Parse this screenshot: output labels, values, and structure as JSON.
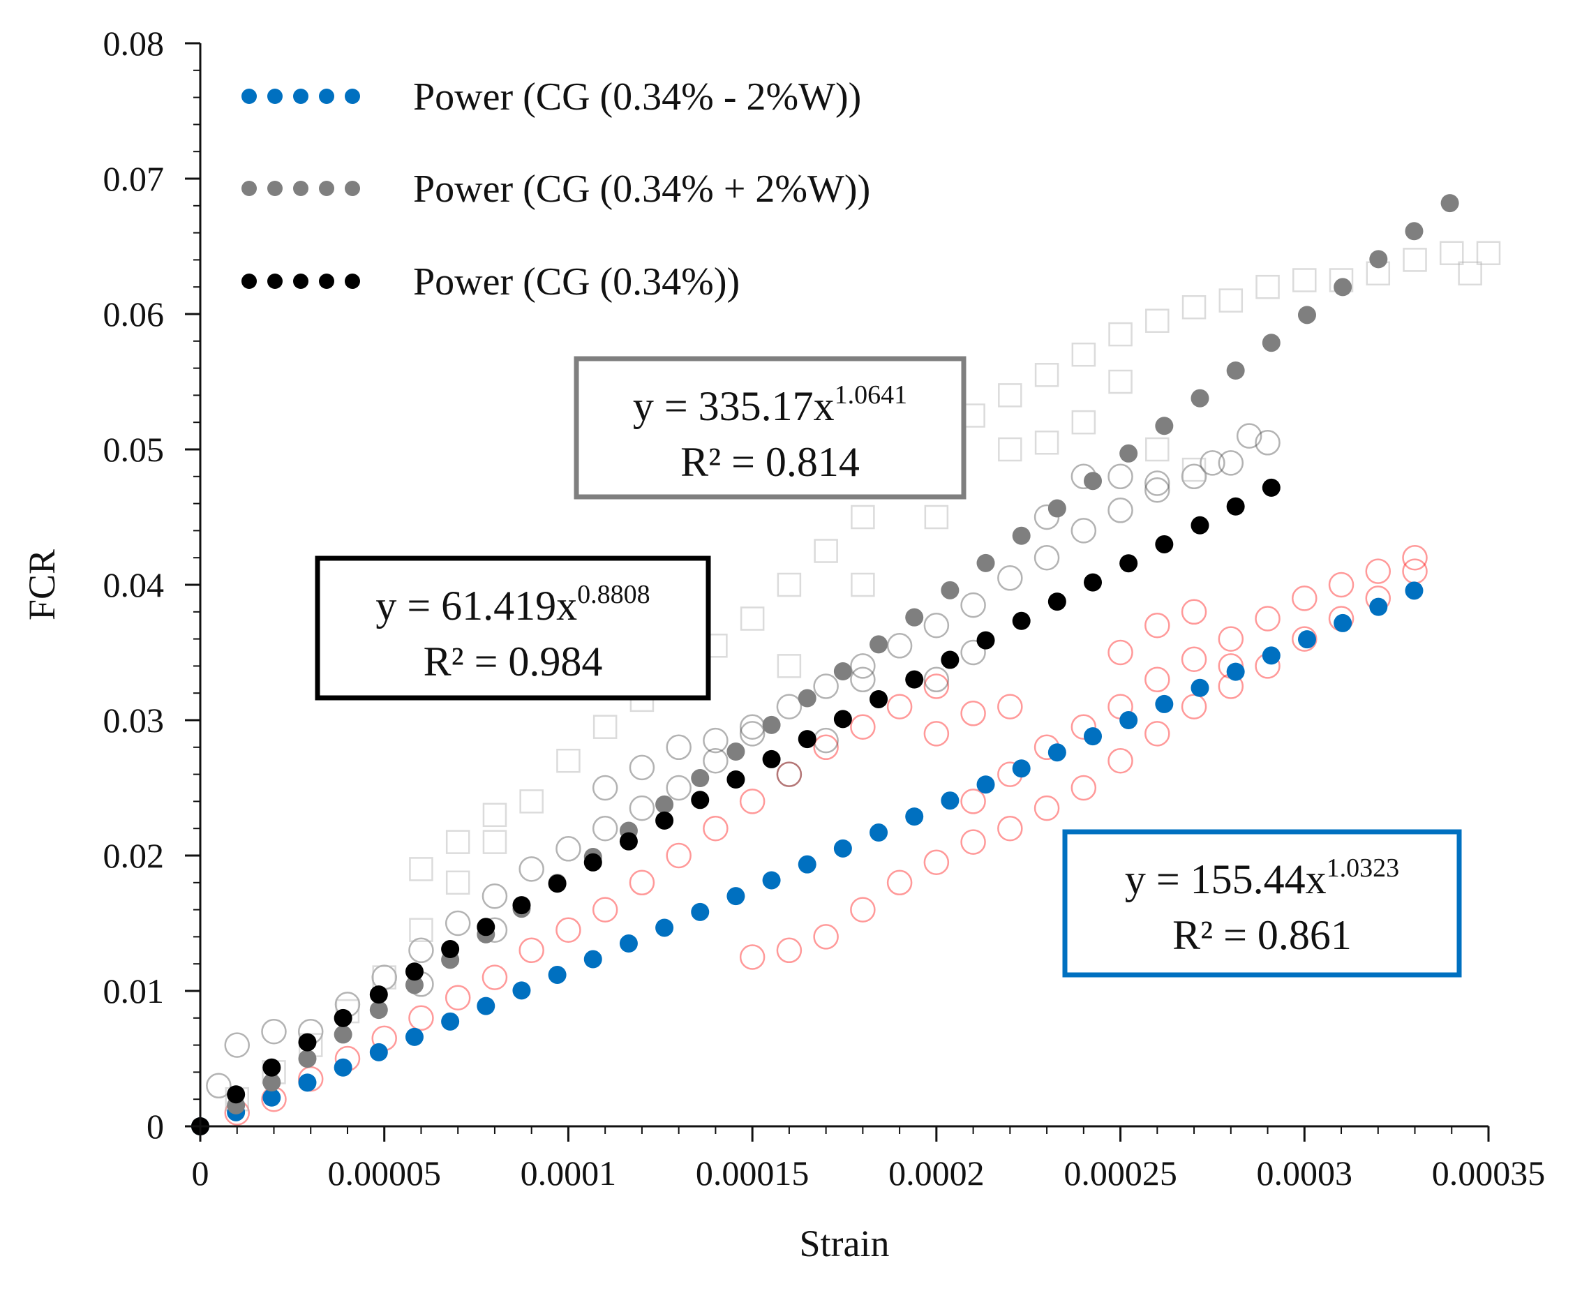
{
  "chart_data": {
    "type": "scatter",
    "xlabel": "Strain",
    "ylabel": "FCR",
    "xlim": [
      0,
      0.00035
    ],
    "ylim": [
      0,
      0.08
    ],
    "x_ticks": [
      "0",
      "0.00005",
      "0.0001",
      "0.00015",
      "0.0002",
      "0.00025",
      "0.0003",
      "0.00035"
    ],
    "y_ticks": [
      "0",
      "0.01",
      "0.02",
      "0.03",
      "0.04",
      "0.05",
      "0.06",
      "0.07",
      "0.08"
    ],
    "legend_position": "top-left",
    "series": [
      {
        "name": "Power (CG (0.34% - 2%W))",
        "kind": "trendline",
        "color": "#0070c0",
        "coef": 155.44,
        "exponent": 1.0323,
        "x_max": 0.000332
      },
      {
        "name": "Power (CG (0.34% + 2%W))",
        "kind": "trendline",
        "color": "#7f7f7f",
        "coef": 335.17,
        "exponent": 1.0641,
        "x_max": 0.000347
      },
      {
        "name": "Power (CG (0.34%))",
        "kind": "trendline",
        "color": "#000000",
        "coef": 61.419,
        "exponent": 0.8808,
        "x_max": 0.000295
      }
    ],
    "raw_series": [
      {
        "marker": "circle",
        "color": "#ff0000",
        "points": [
          [
            1e-05,
            0.001
          ],
          [
            2e-05,
            0.002
          ],
          [
            3e-05,
            0.0035
          ],
          [
            4e-05,
            0.005
          ],
          [
            5e-05,
            0.0065
          ],
          [
            6e-05,
            0.008
          ],
          [
            7e-05,
            0.0095
          ],
          [
            8e-05,
            0.011
          ],
          [
            9e-05,
            0.013
          ],
          [
            0.0001,
            0.0145
          ],
          [
            0.00011,
            0.016
          ],
          [
            0.00012,
            0.018
          ],
          [
            0.00013,
            0.02
          ],
          [
            0.00014,
            0.022
          ],
          [
            0.00015,
            0.024
          ],
          [
            0.00016,
            0.026
          ],
          [
            0.00017,
            0.028
          ],
          [
            0.00018,
            0.0295
          ],
          [
            0.00019,
            0.031
          ],
          [
            0.0002,
            0.0325
          ],
          [
            0.00015,
            0.0125
          ],
          [
            0.00016,
            0.013
          ],
          [
            0.00017,
            0.014
          ],
          [
            0.00018,
            0.016
          ],
          [
            0.00019,
            0.018
          ],
          [
            0.0002,
            0.0195
          ],
          [
            0.00021,
            0.021
          ],
          [
            0.00022,
            0.022
          ],
          [
            0.00023,
            0.0235
          ],
          [
            0.00024,
            0.025
          ],
          [
            0.00025,
            0.027
          ],
          [
            0.00026,
            0.029
          ],
          [
            0.00027,
            0.031
          ],
          [
            0.00028,
            0.0325
          ],
          [
            0.00029,
            0.034
          ],
          [
            0.0003,
            0.036
          ],
          [
            0.00031,
            0.0375
          ],
          [
            0.00032,
            0.039
          ],
          [
            0.00033,
            0.041
          ],
          [
            0.00021,
            0.024
          ],
          [
            0.00022,
            0.026
          ],
          [
            0.00023,
            0.028
          ],
          [
            0.00024,
            0.0295
          ],
          [
            0.00025,
            0.031
          ],
          [
            0.00026,
            0.033
          ],
          [
            0.00027,
            0.0345
          ],
          [
            0.00028,
            0.036
          ],
          [
            0.00029,
            0.0375
          ],
          [
            0.0003,
            0.039
          ],
          [
            0.00031,
            0.04
          ],
          [
            0.00032,
            0.041
          ],
          [
            0.00033,
            0.042
          ],
          [
            0.00022,
            0.031
          ],
          [
            0.00021,
            0.0305
          ],
          [
            0.0002,
            0.029
          ],
          [
            0.00026,
            0.037
          ],
          [
            0.00027,
            0.038
          ],
          [
            0.00025,
            0.035
          ],
          [
            0.00028,
            0.034
          ]
        ]
      },
      {
        "marker": "circle",
        "color": "#404040",
        "points": [
          [
            5e-06,
            0.003
          ],
          [
            1e-05,
            0.006
          ],
          [
            2e-05,
            0.007
          ],
          [
            3e-05,
            0.007
          ],
          [
            4e-05,
            0.009
          ],
          [
            5e-05,
            0.011
          ],
          [
            6e-05,
            0.013
          ],
          [
            7e-05,
            0.015
          ],
          [
            8e-05,
            0.017
          ],
          [
            9e-05,
            0.019
          ],
          [
            0.0001,
            0.0205
          ],
          [
            0.00011,
            0.022
          ],
          [
            0.00012,
            0.0235
          ],
          [
            0.00013,
            0.025
          ],
          [
            0.00014,
            0.027
          ],
          [
            0.00015,
            0.029
          ],
          [
            0.00016,
            0.031
          ],
          [
            0.00017,
            0.0325
          ],
          [
            0.00018,
            0.034
          ],
          [
            0.00019,
            0.0355
          ],
          [
            0.0002,
            0.037
          ],
          [
            0.00021,
            0.0385
          ],
          [
            0.00022,
            0.0405
          ],
          [
            0.00023,
            0.042
          ],
          [
            0.00024,
            0.044
          ],
          [
            0.00025,
            0.0455
          ],
          [
            0.00026,
            0.047
          ],
          [
            0.00027,
            0.048
          ],
          [
            0.00028,
            0.049
          ],
          [
            0.00029,
            0.0505
          ],
          [
            0.000285,
            0.051
          ],
          [
            0.000275,
            0.049
          ],
          [
            0.00011,
            0.025
          ],
          [
            0.00012,
            0.0265
          ],
          [
            0.00013,
            0.028
          ],
          [
            0.00014,
            0.0285
          ],
          [
            0.00015,
            0.0295
          ],
          [
            0.00016,
            0.026
          ],
          [
            0.00017,
            0.0285
          ],
          [
            0.00018,
            0.033
          ],
          [
            0.0002,
            0.033
          ],
          [
            0.00021,
            0.035
          ],
          [
            0.00023,
            0.045
          ],
          [
            0.00024,
            0.048
          ],
          [
            0.00025,
            0.048
          ],
          [
            0.00026,
            0.0475
          ],
          [
            6e-05,
            0.0105
          ],
          [
            8e-05,
            0.0145
          ]
        ]
      },
      {
        "marker": "square",
        "color": "#b0b0b0",
        "points": [
          [
            1e-05,
            0.002
          ],
          [
            2e-05,
            0.004
          ],
          [
            3e-05,
            0.006
          ],
          [
            4e-05,
            0.0085
          ],
          [
            5e-05,
            0.011
          ],
          [
            6e-05,
            0.0145
          ],
          [
            7e-05,
            0.018
          ],
          [
            8e-05,
            0.021
          ],
          [
            9e-05,
            0.024
          ],
          [
            0.0001,
            0.027
          ],
          [
            0.00011,
            0.0295
          ],
          [
            0.00012,
            0.0315
          ],
          [
            0.00013,
            0.033
          ],
          [
            0.00014,
            0.0355
          ],
          [
            0.00015,
            0.0375
          ],
          [
            0.00016,
            0.04
          ],
          [
            0.00017,
            0.0425
          ],
          [
            0.00018,
            0.045
          ],
          [
            0.00019,
            0.0475
          ],
          [
            0.0002,
            0.05
          ],
          [
            0.00021,
            0.0525
          ],
          [
            0.00022,
            0.054
          ],
          [
            0.00023,
            0.0555
          ],
          [
            0.00024,
            0.057
          ],
          [
            0.00025,
            0.0585
          ],
          [
            0.00026,
            0.0595
          ],
          [
            0.00027,
            0.0605
          ],
          [
            0.00028,
            0.061
          ],
          [
            0.00029,
            0.062
          ],
          [
            0.0003,
            0.0625
          ],
          [
            0.00031,
            0.0625
          ],
          [
            0.00032,
            0.063
          ],
          [
            0.00033,
            0.064
          ],
          [
            0.00034,
            0.0645
          ],
          [
            0.00035,
            0.0645
          ],
          [
            0.000345,
            0.063
          ],
          [
            6e-05,
            0.019
          ],
          [
            7e-05,
            0.021
          ],
          [
            8e-05,
            0.023
          ],
          [
            0.00016,
            0.034
          ],
          [
            0.00018,
            0.04
          ],
          [
            0.0002,
            0.045
          ],
          [
            0.00022,
            0.05
          ],
          [
            0.00024,
            0.052
          ],
          [
            0.00025,
            0.055
          ],
          [
            0.00023,
            0.0505
          ],
          [
            0.00026,
            0.05
          ],
          [
            0.00027,
            0.0485
          ]
        ]
      }
    ],
    "annotations": [
      {
        "prefix": "y = 335.17x",
        "exponent": "1.0641",
        "r2_label": "R² = 0.814",
        "border": "#7f7f7f"
      },
      {
        "prefix": "y = 61.419x",
        "exponent": "0.8808",
        "r2_label": "R² = 0.984",
        "border": "#000000"
      },
      {
        "prefix": "y = 155.44x",
        "exponent": "1.0323",
        "r2_label": "R² = 0.861",
        "border": "#0070c0"
      }
    ]
  }
}
